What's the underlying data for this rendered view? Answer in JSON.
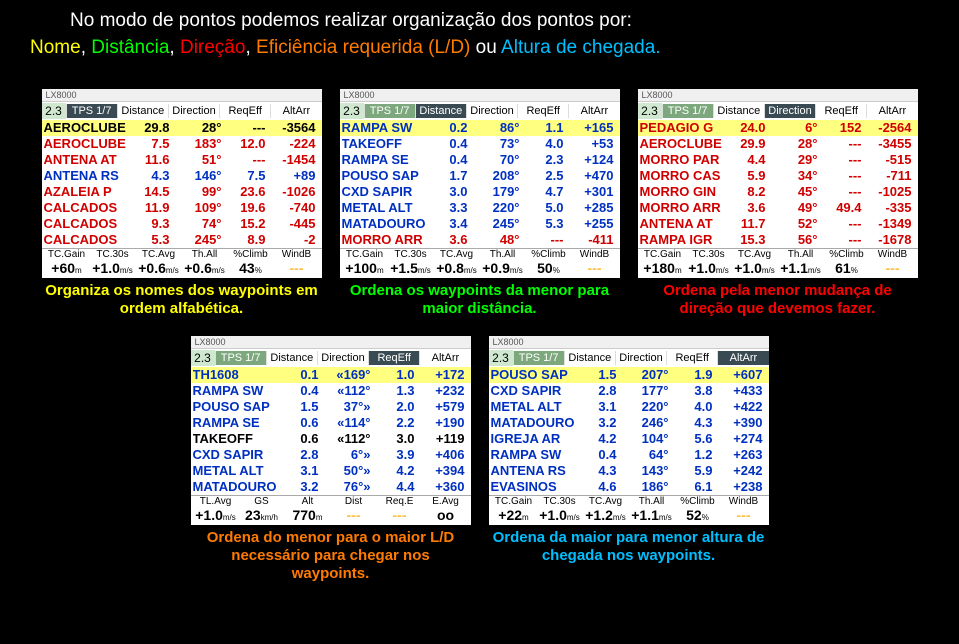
{
  "header": {
    "line1": "No modo de pontos podemos realizar organização dos pontos por:",
    "nome": "Nome",
    "dist": "Distância",
    "dir": "Direção",
    "eff": "Eficiência requerida (L/D)",
    "sep_ou": " ou ",
    "alt": "Altura de chegada."
  },
  "common": {
    "version": "2.3",
    "tps": "TPS 1/7",
    "winTitle": "LX8000",
    "cols": {
      "dist": "Distance",
      "dir": "Direction",
      "eff": "ReqEff",
      "alt": "AltArr"
    }
  },
  "panels": [
    {
      "highlight": "name",
      "caption": "Organiza os nomes dos waypoints em ordem alfabética.",
      "captionColor": "#ffff00",
      "rows": [
        {
          "name": "AEROCLUBE",
          "dist": "29.8",
          "dir": "28°",
          "eff": "---",
          "alt": "-3564",
          "sel": true,
          "color": "#000"
        },
        {
          "name": "AEROCLUBE",
          "dist": "7.5",
          "dir": "183°",
          "eff": "12.0",
          "alt": "-224",
          "color": "#d00000"
        },
        {
          "name": "ANTENA AT",
          "dist": "11.6",
          "dir": "51°",
          "eff": "---",
          "alt": "-1454",
          "color": "#d00000"
        },
        {
          "name": "ANTENA RS",
          "dist": "4.3",
          "dir": "146°",
          "eff": "7.5",
          "alt": "+89",
          "color": "#0030c0"
        },
        {
          "name": "AZALEIA P",
          "dist": "14.5",
          "dir": "99°",
          "eff": "23.6",
          "alt": "-1026",
          "color": "#d00000"
        },
        {
          "name": "CALCADOS",
          "dist": "11.9",
          "dir": "109°",
          "eff": "19.6",
          "alt": "-740",
          "color": "#d00000"
        },
        {
          "name": "CALCADOS",
          "dist": "9.3",
          "dir": "74°",
          "eff": "15.2",
          "alt": "-445",
          "color": "#d00000"
        },
        {
          "name": "CALCADOS",
          "dist": "5.3",
          "dir": "245°",
          "eff": "8.9",
          "alt": "-2",
          "color": "#d00000"
        }
      ],
      "footerLabels": [
        "TC.Gain",
        "TC.30s",
        "TC.Avg",
        "Th.All",
        "%Climb",
        "WindB"
      ],
      "footerVals": [
        "+60",
        "+1.0",
        "+0.6",
        "+0.6",
        "43",
        "---"
      ],
      "footerUnits": [
        "m",
        "m/s",
        "m/s",
        "m/s",
        "%",
        ""
      ]
    },
    {
      "highlight": "dist",
      "caption": "Ordena os waypoints da menor para maior distância.",
      "captionColor": "#00ff00",
      "rows": [
        {
          "name": "RAMPA SW",
          "dist": "0.2",
          "dir": "86°",
          "eff": "1.1",
          "alt": "+165",
          "sel": true,
          "color": "#0030c0"
        },
        {
          "name": "TAKEOFF",
          "dist": "0.4",
          "dir": "73°",
          "eff": "4.0",
          "alt": "+53",
          "color": "#0030c0"
        },
        {
          "name": "RAMPA SE",
          "dist": "0.4",
          "dir": "70°",
          "eff": "2.3",
          "alt": "+124",
          "color": "#0030c0"
        },
        {
          "name": "POUSO SAP",
          "dist": "1.7",
          "dir": "208°",
          "eff": "2.5",
          "alt": "+470",
          "color": "#0030c0"
        },
        {
          "name": "CXD SAPIR",
          "dist": "3.0",
          "dir": "179°",
          "eff": "4.7",
          "alt": "+301",
          "color": "#0030c0"
        },
        {
          "name": "METAL ALT",
          "dist": "3.3",
          "dir": "220°",
          "eff": "5.0",
          "alt": "+285",
          "color": "#0030c0"
        },
        {
          "name": "MATADOURO",
          "dist": "3.4",
          "dir": "245°",
          "eff": "5.3",
          "alt": "+255",
          "color": "#0030c0"
        },
        {
          "name": "MORRO ARR",
          "dist": "3.6",
          "dir": "48°",
          "eff": "---",
          "alt": "-411",
          "color": "#d00000"
        }
      ],
      "footerLabels": [
        "TC.Gain",
        "TC.30s",
        "TC.Avg",
        "Th.All",
        "%Climb",
        "WindB"
      ],
      "footerVals": [
        "+100",
        "+1.5",
        "+0.8",
        "+0.9",
        "50",
        "---"
      ],
      "footerUnits": [
        "m",
        "m/s",
        "m/s",
        "m/s",
        "%",
        ""
      ]
    },
    {
      "highlight": "dir",
      "caption": "Ordena pela menor mudança de direção que devemos fazer.",
      "captionColor": "#ff0000",
      "rows": [
        {
          "name": "PEDAGIO G",
          "dist": "24.0",
          "dir": "6°",
          "eff": "152",
          "alt": "-2564",
          "sel": true,
          "color": "#d00000"
        },
        {
          "name": "AEROCLUBE",
          "dist": "29.9",
          "dir": "28°",
          "eff": "---",
          "alt": "-3455",
          "color": "#d00000"
        },
        {
          "name": "MORRO PAR",
          "dist": "4.4",
          "dir": "29°",
          "eff": "---",
          "alt": "-515",
          "color": "#d00000"
        },
        {
          "name": "MORRO CAS",
          "dist": "5.9",
          "dir": "34°",
          "eff": "---",
          "alt": "-711",
          "color": "#d00000"
        },
        {
          "name": "MORRO GIN",
          "dist": "8.2",
          "dir": "45°",
          "eff": "---",
          "alt": "-1025",
          "color": "#d00000"
        },
        {
          "name": "MORRO ARR",
          "dist": "3.6",
          "dir": "49°",
          "eff": "49.4",
          "alt": "-335",
          "color": "#d00000"
        },
        {
          "name": "ANTENA AT",
          "dist": "11.7",
          "dir": "52°",
          "eff": "---",
          "alt": "-1349",
          "color": "#d00000"
        },
        {
          "name": "RAMPA IGR",
          "dist": "15.3",
          "dir": "56°",
          "eff": "---",
          "alt": "-1678",
          "color": "#d00000"
        }
      ],
      "footerLabels": [
        "TC.Gain",
        "TC.30s",
        "TC.Avg",
        "Th.All",
        "%Climb",
        "WindB"
      ],
      "footerVals": [
        "+180",
        "+1.0",
        "+1.0",
        "+1.1",
        "61",
        "---"
      ],
      "footerUnits": [
        "m",
        "m/s",
        "m/s",
        "m/s",
        "%",
        ""
      ]
    },
    {
      "highlight": "eff",
      "caption": "Ordena do menor para o maior L/D necessário para chegar nos waypoints.",
      "captionColor": "#ff7b00",
      "rows": [
        {
          "name": "TH1608",
          "dist": "0.1",
          "dir": "«169°",
          "eff": "1.0",
          "alt": "+172",
          "sel": true,
          "color": "#0030c0"
        },
        {
          "name": "RAMPA SW",
          "dist": "0.4",
          "dir": "«112°",
          "eff": "1.3",
          "alt": "+232",
          "color": "#0030c0"
        },
        {
          "name": "POUSO SAP",
          "dist": "1.5",
          "dir": "37°»",
          "eff": "2.0",
          "alt": "+579",
          "color": "#0030c0"
        },
        {
          "name": "RAMPA SE",
          "dist": "0.6",
          "dir": "«114°",
          "eff": "2.2",
          "alt": "+190",
          "color": "#0030c0"
        },
        {
          "name": "TAKEOFF",
          "dist": "0.6",
          "dir": "«112°",
          "eff": "3.0",
          "alt": "+119",
          "color": "#000"
        },
        {
          "name": "CXD SAPIR",
          "dist": "2.8",
          "dir": "6°»",
          "eff": "3.9",
          "alt": "+406",
          "color": "#0030c0"
        },
        {
          "name": "METAL ALT",
          "dist": "3.1",
          "dir": "50°»",
          "eff": "4.2",
          "alt": "+394",
          "color": "#0030c0"
        },
        {
          "name": "MATADOURO",
          "dist": "3.2",
          "dir": "76°»",
          "eff": "4.4",
          "alt": "+360",
          "color": "#0030c0"
        }
      ],
      "footerLabels": [
        "TL.Avg",
        "GS",
        "Alt",
        "Dist",
        "Req.E",
        "E.Avg"
      ],
      "footerVals": [
        "+1.0",
        "23",
        "770",
        "---",
        "---",
        "oo"
      ],
      "footerUnits": [
        "m/s",
        "km/h",
        "m",
        "",
        "",
        ""
      ]
    },
    {
      "highlight": "alt",
      "caption": "Ordena da maior para menor altura de chegada nos waypoints.",
      "captionColor": "#00bfff",
      "rows": [
        {
          "name": "POUSO SAP",
          "dist": "1.5",
          "dir": "207°",
          "eff": "1.9",
          "alt": "+607",
          "sel": true,
          "color": "#0030c0"
        },
        {
          "name": "CXD SAPIR",
          "dist": "2.8",
          "dir": "177°",
          "eff": "3.8",
          "alt": "+433",
          "color": "#0030c0"
        },
        {
          "name": "METAL ALT",
          "dist": "3.1",
          "dir": "220°",
          "eff": "4.0",
          "alt": "+422",
          "color": "#0030c0"
        },
        {
          "name": "MATADOURO",
          "dist": "3.2",
          "dir": "246°",
          "eff": "4.3",
          "alt": "+390",
          "color": "#0030c0"
        },
        {
          "name": "IGREJA AR",
          "dist": "4.2",
          "dir": "104°",
          "eff": "5.6",
          "alt": "+274",
          "color": "#0030c0"
        },
        {
          "name": "RAMPA SW",
          "dist": "0.4",
          "dir": "64°",
          "eff": "1.2",
          "alt": "+263",
          "color": "#0030c0"
        },
        {
          "name": "ANTENA RS",
          "dist": "4.3",
          "dir": "143°",
          "eff": "5.9",
          "alt": "+242",
          "color": "#0030c0"
        },
        {
          "name": "EVASINOS",
          "dist": "4.6",
          "dir": "186°",
          "eff": "6.1",
          "alt": "+238",
          "color": "#0030c0"
        }
      ],
      "footerLabels": [
        "TC.Gain",
        "TC.30s",
        "TC.Avg",
        "Th.All",
        "%Climb",
        "WindB"
      ],
      "footerVals": [
        "+22",
        "+1.0",
        "+1.2",
        "+1.1",
        "52",
        "---"
      ],
      "footerUnits": [
        "m",
        "m/s",
        "m/s",
        "m/s",
        "%",
        ""
      ]
    }
  ]
}
